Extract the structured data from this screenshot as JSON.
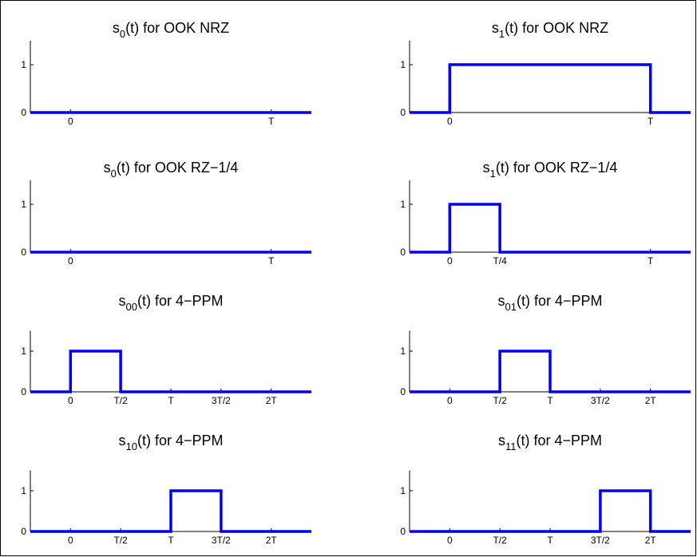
{
  "chart_data": [
    {
      "type": "line",
      "title_main": "s",
      "title_sub": "0",
      "title_rest": "(t) for OOK NRZ",
      "xlim": [
        -0.2,
        1.2
      ],
      "ylim": [
        0,
        1.5
      ],
      "yticks": [
        0,
        1
      ],
      "xticks": [
        {
          "v": 0,
          "label": "0"
        },
        {
          "v": 1,
          "label": "T"
        }
      ],
      "series": [
        {
          "x": [
            -0.2,
            1.2
          ],
          "y": [
            0,
            0
          ]
        }
      ]
    },
    {
      "type": "line",
      "title_main": "s",
      "title_sub": "1",
      "title_rest": "(t) for OOK NRZ",
      "xlim": [
        -0.2,
        1.2
      ],
      "ylim": [
        0,
        1.5
      ],
      "yticks": [
        0,
        1
      ],
      "xticks": [
        {
          "v": 0,
          "label": "0"
        },
        {
          "v": 1,
          "label": "T"
        }
      ],
      "series": [
        {
          "x": [
            -0.2,
            0,
            0,
            1,
            1,
            1.2
          ],
          "y": [
            0,
            0,
            1,
            1,
            0,
            0
          ]
        }
      ]
    },
    {
      "type": "line",
      "title_main": "s",
      "title_sub": "0",
      "title_rest": "(t) for OOK RZ−1/4",
      "xlim": [
        -0.2,
        1.2
      ],
      "ylim": [
        0,
        1.5
      ],
      "yticks": [
        0,
        1
      ],
      "xticks": [
        {
          "v": 0,
          "label": "0"
        },
        {
          "v": 1,
          "label": "T"
        }
      ],
      "series": [
        {
          "x": [
            -0.2,
            1.2
          ],
          "y": [
            0,
            0
          ]
        }
      ]
    },
    {
      "type": "line",
      "title_main": "s",
      "title_sub": "1",
      "title_rest": "(t) for OOK RZ−1/4",
      "xlim": [
        -0.2,
        1.2
      ],
      "ylim": [
        0,
        1.5
      ],
      "yticks": [
        0,
        1
      ],
      "xticks": [
        {
          "v": 0,
          "label": "0"
        },
        {
          "v": 0.25,
          "label": "T/4"
        },
        {
          "v": 1,
          "label": "T"
        }
      ],
      "series": [
        {
          "x": [
            -0.2,
            0,
            0,
            0.25,
            0.25,
            1.2
          ],
          "y": [
            0,
            0,
            1,
            1,
            0,
            0
          ]
        }
      ]
    },
    {
      "type": "line",
      "title_main": "s",
      "title_sub": "00",
      "title_rest": "(t) for 4−PPM",
      "xlim": [
        -0.4,
        2.4
      ],
      "ylim": [
        0,
        1.5
      ],
      "yticks": [
        0,
        1
      ],
      "xticks": [
        {
          "v": 0,
          "label": "0"
        },
        {
          "v": 0.5,
          "label": "T/2"
        },
        {
          "v": 1,
          "label": "T"
        },
        {
          "v": 1.5,
          "label": "3T/2"
        },
        {
          "v": 2,
          "label": "2T"
        }
      ],
      "series": [
        {
          "x": [
            -0.4,
            0,
            0,
            0.5,
            0.5,
            2.4
          ],
          "y": [
            0,
            0,
            1,
            1,
            0,
            0
          ]
        }
      ]
    },
    {
      "type": "line",
      "title_main": "s",
      "title_sub": "01",
      "title_rest": "(t) for 4−PPM",
      "xlim": [
        -0.4,
        2.4
      ],
      "ylim": [
        0,
        1.5
      ],
      "yticks": [
        0,
        1
      ],
      "xticks": [
        {
          "v": 0,
          "label": "0"
        },
        {
          "v": 0.5,
          "label": "T/2"
        },
        {
          "v": 1,
          "label": "T"
        },
        {
          "v": 1.5,
          "label": "3T/2"
        },
        {
          "v": 2,
          "label": "2T"
        }
      ],
      "series": [
        {
          "x": [
            -0.4,
            0.5,
            0.5,
            1,
            1,
            2.4
          ],
          "y": [
            0,
            0,
            1,
            1,
            0,
            0
          ]
        }
      ]
    },
    {
      "type": "line",
      "title_main": "s",
      "title_sub": "10",
      "title_rest": "(t) for 4−PPM",
      "xlim": [
        -0.4,
        2.4
      ],
      "ylim": [
        0,
        1.5
      ],
      "yticks": [
        0,
        1
      ],
      "xticks": [
        {
          "v": 0,
          "label": "0"
        },
        {
          "v": 0.5,
          "label": "T/2"
        },
        {
          "v": 1,
          "label": "T"
        },
        {
          "v": 1.5,
          "label": "3T/2"
        },
        {
          "v": 2,
          "label": "2T"
        }
      ],
      "series": [
        {
          "x": [
            -0.4,
            1,
            1,
            1.5,
            1.5,
            2.4
          ],
          "y": [
            0,
            0,
            1,
            1,
            0,
            0
          ]
        }
      ]
    },
    {
      "type": "line",
      "title_main": "s",
      "title_sub": "11",
      "title_rest": "(t) for 4−PPM",
      "xlim": [
        -0.4,
        2.4
      ],
      "ylim": [
        0,
        1.5
      ],
      "yticks": [
        0,
        1
      ],
      "xticks": [
        {
          "v": 0,
          "label": "0"
        },
        {
          "v": 0.5,
          "label": "T/2"
        },
        {
          "v": 1,
          "label": "T"
        },
        {
          "v": 1.5,
          "label": "3T/2"
        },
        {
          "v": 2,
          "label": "2T"
        }
      ],
      "series": [
        {
          "x": [
            -0.4,
            1.5,
            1.5,
            2,
            2,
            2.4
          ],
          "y": [
            0,
            0,
            1,
            1,
            0,
            0
          ]
        }
      ]
    }
  ],
  "colors": {
    "signal": "#0000ee",
    "axis": "#000000"
  }
}
